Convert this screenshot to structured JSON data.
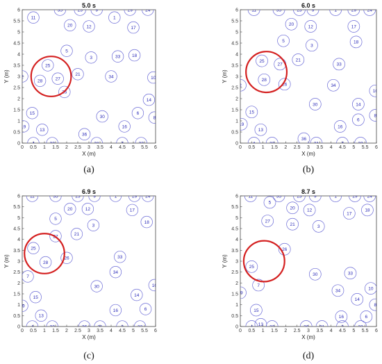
{
  "figure": {
    "panel_count": 4
  },
  "colors": {
    "circle": "#6a6ad6",
    "label": "#2b2bb8",
    "highlight": "#d42020",
    "axis": "#444444",
    "grid": "#eeeeee"
  },
  "chart_data": [
    {
      "type": "scatter",
      "title": "5.0 s",
      "caption": "(a)",
      "xlabel": "X (m)",
      "ylabel": "Y (m)",
      "xlim": [
        0,
        6
      ],
      "ylim": [
        0,
        6
      ],
      "xticks": [
        "0",
        "0.5",
        "1",
        "1.5",
        "2",
        "2.5",
        "3",
        "3.5",
        "4",
        "4.5",
        "5",
        "5.5",
        "6"
      ],
      "yticks": [
        "0",
        "0.5",
        "1",
        "1.5",
        "2",
        "2.5",
        "3",
        "3.5",
        "4",
        "4.5",
        "5",
        "5.5",
        "6"
      ],
      "highlight": {
        "x": 1.3,
        "y": 3.0,
        "r": 0.9
      },
      "points": [
        {
          "id": "11",
          "x": 0.5,
          "y": 5.65
        },
        {
          "id": "35",
          "x": 1.7,
          "y": 6.0
        },
        {
          "id": "23",
          "x": 2.6,
          "y": 6.0
        },
        {
          "id": "9",
          "x": 3.35,
          "y": 6.0
        },
        {
          "id": "29",
          "x": 4.85,
          "y": 6.0
        },
        {
          "id": "24",
          "x": 5.65,
          "y": 6.0
        },
        {
          "id": "20",
          "x": 2.15,
          "y": 5.3
        },
        {
          "id": "12",
          "x": 3.0,
          "y": 5.25
        },
        {
          "id": "1",
          "x": 4.15,
          "y": 5.65
        },
        {
          "id": "17",
          "x": 5.0,
          "y": 5.2
        },
        {
          "id": "5",
          "x": 2.0,
          "y": 4.15
        },
        {
          "id": "3",
          "x": 3.1,
          "y": 3.85
        },
        {
          "id": "33",
          "x": 4.3,
          "y": 3.9
        },
        {
          "id": "18",
          "x": 5.05,
          "y": 3.95
        },
        {
          "id": "25",
          "x": 1.15,
          "y": 3.5
        },
        {
          "id": "21",
          "x": 2.5,
          "y": 3.1
        },
        {
          "id": "34",
          "x": 4.0,
          "y": 3.0
        },
        {
          "id": "2",
          "x": 0.0,
          "y": 3.0
        },
        {
          "id": "27",
          "x": 1.6,
          "y": 2.9
        },
        {
          "id": "28",
          "x": 0.8,
          "y": 2.8
        },
        {
          "id": "10",
          "x": 5.9,
          "y": 2.95
        },
        {
          "id": "26",
          "x": 1.9,
          "y": 2.3
        },
        {
          "id": "14",
          "x": 5.7,
          "y": 1.95
        },
        {
          "id": "15",
          "x": 0.45,
          "y": 1.35
        },
        {
          "id": "30",
          "x": 3.6,
          "y": 1.2
        },
        {
          "id": "6",
          "x": 5.2,
          "y": 1.35
        },
        {
          "id": "8",
          "x": 5.95,
          "y": 1.15
        },
        {
          "id": "19",
          "x": 0.05,
          "y": 0.75
        },
        {
          "id": "13",
          "x": 0.9,
          "y": 0.6
        },
        {
          "id": "16",
          "x": 4.6,
          "y": 0.75
        },
        {
          "id": "36",
          "x": 2.8,
          "y": 0.4
        },
        {
          "id": "4",
          "x": 0.5,
          "y": 0.0
        },
        {
          "id": "32",
          "x": 1.35,
          "y": 0.0
        },
        {
          "id": "31",
          "x": 3.35,
          "y": 0.0
        },
        {
          "id": "7",
          "x": 4.5,
          "y": 0.0
        },
        {
          "id": "22",
          "x": 5.35,
          "y": 0.0
        }
      ]
    },
    {
      "type": "scatter",
      "title": "6.0 s",
      "caption": "(b)",
      "xlabel": "X (m)",
      "ylabel": "Y (m)",
      "xlim": [
        0,
        6
      ],
      "ylim": [
        0,
        6
      ],
      "xticks": [
        "0",
        "0.5",
        "1",
        "1.5",
        "2",
        "2.5",
        "3",
        "3.5",
        "4",
        "4.5",
        "5",
        "5.5",
        "6"
      ],
      "yticks": [
        "0",
        "0.5",
        "1",
        "1.5",
        "2",
        "2.5",
        "3",
        "3.5",
        "4",
        "4.5",
        "5",
        "5.5",
        "6"
      ],
      "highlight": {
        "x": 1.15,
        "y": 3.2,
        "r": 0.9
      },
      "points": [
        {
          "id": "11",
          "x": 0.6,
          "y": 6.0
        },
        {
          "id": "35",
          "x": 1.7,
          "y": 6.0
        },
        {
          "id": "23",
          "x": 2.6,
          "y": 6.0
        },
        {
          "id": "9",
          "x": 3.2,
          "y": 6.0
        },
        {
          "id": "1",
          "x": 4.2,
          "y": 6.0
        },
        {
          "id": "29",
          "x": 5.0,
          "y": 6.0
        },
        {
          "id": "24",
          "x": 5.7,
          "y": 6.0
        },
        {
          "id": "20",
          "x": 2.25,
          "y": 5.35
        },
        {
          "id": "12",
          "x": 3.1,
          "y": 5.25
        },
        {
          "id": "17",
          "x": 5.0,
          "y": 5.25
        },
        {
          "id": "5",
          "x": 1.9,
          "y": 4.6
        },
        {
          "id": "3",
          "x": 3.15,
          "y": 4.4
        },
        {
          "id": "18",
          "x": 5.1,
          "y": 4.55
        },
        {
          "id": "25",
          "x": 0.95,
          "y": 3.7
        },
        {
          "id": "27",
          "x": 1.75,
          "y": 3.55
        },
        {
          "id": "21",
          "x": 2.55,
          "y": 3.75
        },
        {
          "id": "33",
          "x": 4.35,
          "y": 3.55
        },
        {
          "id": "28",
          "x": 1.05,
          "y": 2.85
        },
        {
          "id": "2",
          "x": 0.0,
          "y": 2.6
        },
        {
          "id": "26",
          "x": 1.95,
          "y": 2.65
        },
        {
          "id": "34",
          "x": 4.1,
          "y": 2.6
        },
        {
          "id": "10",
          "x": 5.95,
          "y": 2.35
        },
        {
          "id": "30",
          "x": 3.3,
          "y": 1.75
        },
        {
          "id": "14",
          "x": 5.2,
          "y": 1.75
        },
        {
          "id": "15",
          "x": 0.5,
          "y": 1.4
        },
        {
          "id": "8",
          "x": 5.95,
          "y": 1.25
        },
        {
          "id": "19",
          "x": 0.05,
          "y": 0.85
        },
        {
          "id": "6",
          "x": 5.2,
          "y": 1.05
        },
        {
          "id": "13",
          "x": 0.9,
          "y": 0.6
        },
        {
          "id": "16",
          "x": 4.4,
          "y": 0.75
        },
        {
          "id": "36",
          "x": 2.8,
          "y": 0.2
        },
        {
          "id": "4",
          "x": 0.6,
          "y": 0.0
        },
        {
          "id": "32",
          "x": 1.4,
          "y": 0.0
        },
        {
          "id": "31",
          "x": 3.35,
          "y": 0.0
        },
        {
          "id": "7",
          "x": 4.5,
          "y": 0.0
        },
        {
          "id": "22",
          "x": 5.3,
          "y": 0.0
        }
      ]
    },
    {
      "type": "scatter",
      "title": "6.9 s",
      "caption": "(c)",
      "xlabel": "X (m)",
      "ylabel": "Y (m)",
      "xlim": [
        0,
        6
      ],
      "ylim": [
        0,
        6
      ],
      "xticks": [
        "0",
        "0.5",
        "1",
        "1.5",
        "2",
        "2.5",
        "3",
        "3.5",
        "4",
        "4.5",
        "5",
        "5.5",
        "6"
      ],
      "yticks": [
        "0",
        "0.5",
        "1",
        "1.5",
        "2",
        "2.5",
        "3",
        "3.5",
        "4",
        "4.5",
        "5",
        "5.5",
        "6"
      ],
      "highlight": {
        "x": 1.0,
        "y": 3.35,
        "r": 0.9
      },
      "points": [
        {
          "id": "11",
          "x": 0.45,
          "y": 6.0
        },
        {
          "id": "35",
          "x": 1.5,
          "y": 6.0
        },
        {
          "id": "23",
          "x": 2.5,
          "y": 6.0
        },
        {
          "id": "9",
          "x": 3.25,
          "y": 6.0
        },
        {
          "id": "1",
          "x": 4.2,
          "y": 6.0
        },
        {
          "id": "29",
          "x": 5.05,
          "y": 6.0
        },
        {
          "id": "24",
          "x": 5.65,
          "y": 6.0
        },
        {
          "id": "20",
          "x": 2.15,
          "y": 5.4
        },
        {
          "id": "12",
          "x": 2.95,
          "y": 5.4
        },
        {
          "id": "17",
          "x": 4.95,
          "y": 5.35
        },
        {
          "id": "5",
          "x": 1.5,
          "y": 4.95
        },
        {
          "id": "3",
          "x": 3.2,
          "y": 4.65
        },
        {
          "id": "18",
          "x": 5.6,
          "y": 4.8
        },
        {
          "id": "27",
          "x": 1.5,
          "y": 4.15
        },
        {
          "id": "21",
          "x": 2.45,
          "y": 4.25
        },
        {
          "id": "25",
          "x": 0.5,
          "y": 3.6
        },
        {
          "id": "26",
          "x": 2.0,
          "y": 3.15
        },
        {
          "id": "28",
          "x": 1.05,
          "y": 2.95
        },
        {
          "id": "33",
          "x": 4.4,
          "y": 3.2
        },
        {
          "id": "34",
          "x": 4.2,
          "y": 2.5
        },
        {
          "id": "7",
          "x": 0.25,
          "y": 2.3
        },
        {
          "id": "10",
          "x": 5.95,
          "y": 1.9
        },
        {
          "id": "30",
          "x": 3.35,
          "y": 1.85
        },
        {
          "id": "14",
          "x": 5.15,
          "y": 1.45
        },
        {
          "id": "15",
          "x": 0.6,
          "y": 1.35
        },
        {
          "id": "19",
          "x": 0.0,
          "y": 0.95
        },
        {
          "id": "6",
          "x": 5.55,
          "y": 0.8
        },
        {
          "id": "13",
          "x": 0.85,
          "y": 0.5
        },
        {
          "id": "16",
          "x": 4.2,
          "y": 0.75
        },
        {
          "id": "4",
          "x": 0.45,
          "y": 0.0
        },
        {
          "id": "32",
          "x": 1.35,
          "y": 0.0
        },
        {
          "id": "36",
          "x": 2.8,
          "y": 0.0
        },
        {
          "id": "31",
          "x": 3.5,
          "y": 0.0
        },
        {
          "id": "2",
          "x": 4.5,
          "y": 0.0
        },
        {
          "id": "22",
          "x": 5.3,
          "y": 0.0
        }
      ]
    },
    {
      "type": "scatter",
      "title": "8.7 s",
      "caption": "(d)",
      "xlabel": "X (m)",
      "ylabel": "Y (m)",
      "xlim": [
        0,
        6
      ],
      "ylim": [
        0,
        6
      ],
      "xticks": [
        "0",
        "0.5",
        "1",
        "1.5",
        "2",
        "2.5",
        "3",
        "3.5",
        "4",
        "4.5",
        "5",
        "5.5",
        "6"
      ],
      "yticks": [
        "0",
        "0.5",
        "1",
        "1.5",
        "2",
        "2.5",
        "3",
        "3.5",
        "4",
        "4.5",
        "5",
        "5.5",
        "6"
      ],
      "highlight": {
        "x": 1.05,
        "y": 3.0,
        "r": 0.9
      },
      "points": [
        {
          "id": "11",
          "x": 0.45,
          "y": 6.0
        },
        {
          "id": "35",
          "x": 1.7,
          "y": 6.0
        },
        {
          "id": "23",
          "x": 2.6,
          "y": 6.0
        },
        {
          "id": "9",
          "x": 3.3,
          "y": 6.0
        },
        {
          "id": "1",
          "x": 4.2,
          "y": 6.0
        },
        {
          "id": "29",
          "x": 5.05,
          "y": 6.0
        },
        {
          "id": "24",
          "x": 5.7,
          "y": 6.0
        },
        {
          "id": "5",
          "x": 1.3,
          "y": 5.7
        },
        {
          "id": "20",
          "x": 2.3,
          "y": 5.45
        },
        {
          "id": "12",
          "x": 3.05,
          "y": 5.35
        },
        {
          "id": "17",
          "x": 4.8,
          "y": 5.2
        },
        {
          "id": "18",
          "x": 5.6,
          "y": 5.35
        },
        {
          "id": "27",
          "x": 1.2,
          "y": 4.85
        },
        {
          "id": "21",
          "x": 2.3,
          "y": 4.7
        },
        {
          "id": "3",
          "x": 3.45,
          "y": 4.6
        },
        {
          "id": "26",
          "x": 1.95,
          "y": 3.55
        },
        {
          "id": "25",
          "x": 0.5,
          "y": 2.75
        },
        {
          "id": "30",
          "x": 3.3,
          "y": 2.4
        },
        {
          "id": "33",
          "x": 4.85,
          "y": 2.45
        },
        {
          "id": "7",
          "x": 0.8,
          "y": 1.9
        },
        {
          "id": "19",
          "x": 0.0,
          "y": 1.55
        },
        {
          "id": "34",
          "x": 4.3,
          "y": 1.65
        },
        {
          "id": "10",
          "x": 5.75,
          "y": 1.75
        },
        {
          "id": "14",
          "x": 5.15,
          "y": 1.25
        },
        {
          "id": "8",
          "x": 5.95,
          "y": 1.0
        },
        {
          "id": "15",
          "x": 0.7,
          "y": 0.75
        },
        {
          "id": "16",
          "x": 4.45,
          "y": 0.45
        },
        {
          "id": "6",
          "x": 5.55,
          "y": 0.45
        },
        {
          "id": "13",
          "x": 0.9,
          "y": 0.1
        },
        {
          "id": "4",
          "x": 0.5,
          "y": 0.0
        },
        {
          "id": "32",
          "x": 1.4,
          "y": 0.0
        },
        {
          "id": "36",
          "x": 2.9,
          "y": 0.0
        },
        {
          "id": "31",
          "x": 3.6,
          "y": 0.0
        },
        {
          "id": "2",
          "x": 4.5,
          "y": 0.0
        },
        {
          "id": "22",
          "x": 5.3,
          "y": 0.0
        }
      ]
    }
  ]
}
